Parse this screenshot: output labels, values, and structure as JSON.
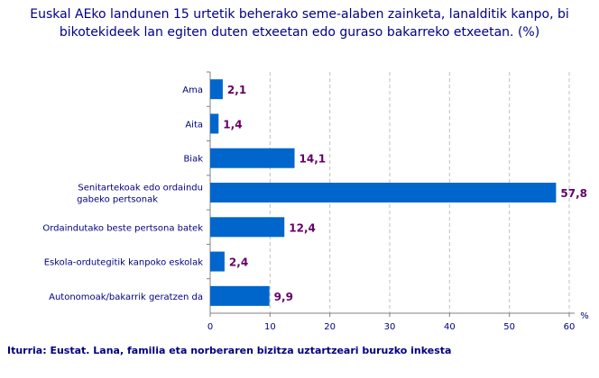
{
  "chart_data": {
    "type": "bar",
    "orientation": "horizontal",
    "title": "Euskal AEko landunen 15 urtetik beherako seme-alaben zainketa, lanalditik kanpo, bi bikotekideek lan egiten duten etxeetan edo guraso bakarreko etxeetan. (%)",
    "categories": [
      "Ama",
      "Aita",
      "Biak",
      "Senitartekoak edo ordaindu gabeko pertsonak",
      "Ordaindutako beste pertsona batek",
      "Eskola-ordutegitik kanpoko eskolak",
      "Autonomoak/bakarrik geratzen da"
    ],
    "values": [
      2.1,
      1.4,
      14.1,
      57.8,
      12.4,
      2.4,
      9.9
    ],
    "value_labels": [
      "2,1",
      "1,4",
      "14,1",
      "57,8",
      "12,4",
      "2,4",
      "9,9"
    ],
    "xlabel": "%",
    "xlim": [
      0,
      60
    ],
    "xticks": [
      0,
      10,
      20,
      30,
      40,
      50,
      60
    ],
    "grid": "vertical dashed",
    "legend": "none",
    "colors": {
      "bar": "#0066cc",
      "value_label": "#660066",
      "text": "#000080",
      "grid": "#c0c0c0"
    }
  },
  "source": "Iturria: Eustat. Lana, familia eta norberaren bizitza uztartzeari buruzko inkesta"
}
